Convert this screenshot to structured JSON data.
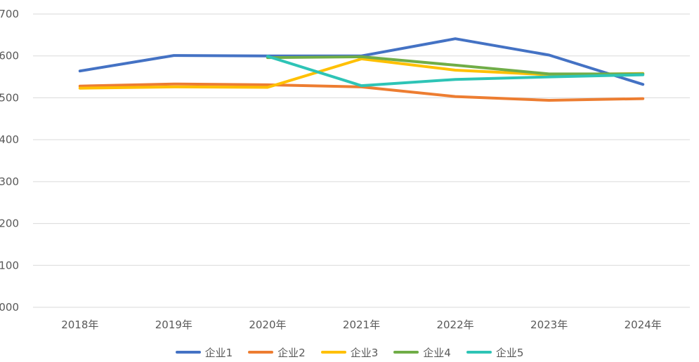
{
  "chart_data": {
    "type": "line",
    "categories": [
      "2018年",
      "2019年",
      "2020年",
      "2021年",
      "2022年",
      "2023年",
      "2024年"
    ],
    "y_tick_labels": [
      "000",
      "100",
      "200",
      "300",
      "400",
      "500",
      "600",
      "700"
    ],
    "ylim": [
      0,
      700
    ],
    "grid": true,
    "legend_position": "bottom",
    "series": [
      {
        "name": "企业1",
        "color": "#4472C4",
        "values": [
          564,
          601,
          600,
          600,
          641,
          602,
          532
        ]
      },
      {
        "name": "企业2",
        "color": "#ED7D31",
        "values": [
          528,
          533,
          531,
          526,
          503,
          494,
          498
        ]
      },
      {
        "name": "企业3",
        "color": "#FFC000",
        "values": [
          523,
          526,
          525,
          593,
          566,
          555,
          558
        ]
      },
      {
        "name": "企业4",
        "color": "#70AD47",
        "values": [
          null,
          null,
          596,
          598,
          578,
          557,
          557
        ]
      },
      {
        "name": "企业5",
        "color": "#2EC4B6",
        "values": [
          null,
          null,
          599,
          529,
          544,
          550,
          555
        ]
      }
    ]
  }
}
